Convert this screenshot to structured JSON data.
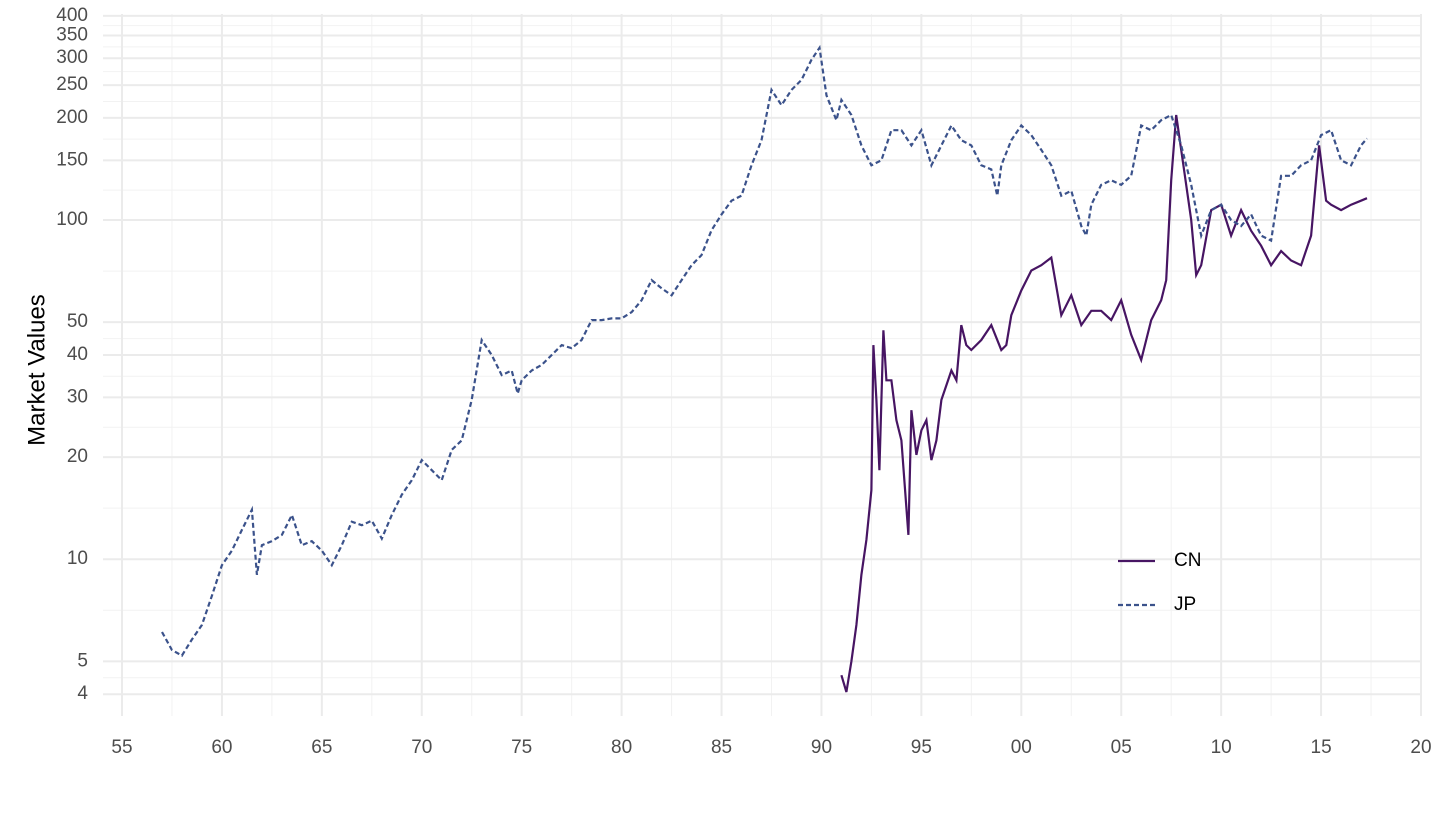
{
  "chart_data": {
    "type": "line",
    "y_label": "Market Values",
    "y_log": true,
    "grid": true,
    "legend_position": "bottom-right",
    "xlim": [
      1954.05,
      2020
    ],
    "ylim": [
      3.45,
      405
    ],
    "xticks": [
      {
        "value": 1955,
        "label": "55"
      },
      {
        "value": 1960,
        "label": "60"
      },
      {
        "value": 1965,
        "label": "65"
      },
      {
        "value": 1970,
        "label": "70"
      },
      {
        "value": 1975,
        "label": "75"
      },
      {
        "value": 1980,
        "label": "80"
      },
      {
        "value": 1985,
        "label": "85"
      },
      {
        "value": 1990,
        "label": "90"
      },
      {
        "value": 1995,
        "label": "95"
      },
      {
        "value": 2000,
        "label": "00"
      },
      {
        "value": 2005,
        "label": "05"
      },
      {
        "value": 2010,
        "label": "10"
      },
      {
        "value": 2015,
        "label": "15"
      },
      {
        "value": 2020,
        "label": "20"
      }
    ],
    "yticks": [
      4,
      5,
      10,
      20,
      30,
      40,
      50,
      100,
      150,
      200,
      250,
      300,
      350,
      400
    ],
    "series": [
      {
        "name": "CN",
        "color": "#471563",
        "linestyle": "solid",
        "x": [
          1991.0,
          1991.25,
          1991.5,
          1991.75,
          1992.0,
          1992.25,
          1992.5,
          1992.6,
          1992.75,
          1992.9,
          1993.1,
          1993.25,
          1993.5,
          1993.75,
          1994.0,
          1994.35,
          1994.5,
          1994.75,
          1995.0,
          1995.25,
          1995.5,
          1995.75,
          1996.0,
          1996.5,
          1996.75,
          1997.0,
          1997.25,
          1997.5,
          1998.0,
          1998.5,
          1999.0,
          1999.25,
          1999.5,
          2000.0,
          2000.5,
          2001.0,
          2001.5,
          2002.0,
          2002.5,
          2003.0,
          2003.5,
          2004.0,
          2004.5,
          2005.0,
          2005.5,
          2006.0,
          2006.5,
          2007.0,
          2007.25,
          2007.5,
          2007.75,
          2008.0,
          2008.5,
          2008.75,
          2009.0,
          2009.5,
          2010.0,
          2010.5,
          2011.0,
          2011.5,
          2012.0,
          2012.5,
          2013.0,
          2013.5,
          2014.0,
          2014.5,
          2014.9,
          2015.25,
          2015.5,
          2016.0,
          2016.5,
          2017.0,
          2017.3
        ],
        "values": [
          4.55,
          4.06,
          5.0,
          6.4,
          9.0,
          11.4,
          16,
          42.8,
          29.5,
          18.3,
          47.3,
          33.7,
          33.7,
          25.7,
          22.4,
          11.8,
          27.5,
          20.3,
          24,
          25.7,
          19.6,
          22.4,
          29.5,
          36,
          33.7,
          49,
          42.8,
          41.4,
          44.3,
          49,
          41.4,
          42.8,
          52.4,
          62,
          71,
          73.6,
          77.5,
          52.4,
          60,
          49,
          54,
          54,
          50.7,
          58,
          45.9,
          38.7,
          50.7,
          58,
          66.5,
          131,
          204,
          161,
          100,
          68.8,
          73.6,
          107,
          111,
          90,
          107,
          93,
          84,
          73.6,
          81,
          76,
          73.6,
          90,
          166,
          114,
          111,
          107,
          111,
          114,
          116
        ]
      },
      {
        "name": "JP",
        "color": "#3b528b",
        "linestyle": "dashed",
        "x": [
          1957.0,
          1957.5,
          1958.0,
          1958.5,
          1959.0,
          1959.5,
          1960.0,
          1960.5,
          1961.0,
          1961.5,
          1961.75,
          1962.0,
          1962.5,
          1963.0,
          1963.5,
          1964.0,
          1964.5,
          1965.0,
          1965.5,
          1966.0,
          1966.5,
          1967.0,
          1967.5,
          1968.0,
          1968.5,
          1969.0,
          1969.5,
          1970.0,
          1970.5,
          1971.0,
          1971.5,
          1972.0,
          1972.5,
          1973.0,
          1973.5,
          1974.0,
          1974.5,
          1974.8,
          1975.0,
          1975.5,
          1976.0,
          1976.5,
          1977.0,
          1977.5,
          1978.0,
          1978.5,
          1979.0,
          1979.5,
          1980.0,
          1980.5,
          1981.0,
          1981.5,
          1982.0,
          1982.5,
          1983.0,
          1983.5,
          1984.0,
          1984.5,
          1985.0,
          1985.5,
          1986.0,
          1986.5,
          1987.0,
          1987.5,
          1988.0,
          1988.5,
          1989.0,
          1989.5,
          1989.9,
          1990.25,
          1990.75,
          1991.0,
          1991.5,
          1992.0,
          1992.5,
          1993.0,
          1993.5,
          1994.0,
          1994.5,
          1995.0,
          1995.5,
          1996.0,
          1996.5,
          1997.0,
          1997.5,
          1998.0,
          1998.5,
          1998.8,
          1999.0,
          1999.5,
          2000.0,
          2000.5,
          2001.0,
          2001.5,
          2002.0,
          2002.5,
          2003.0,
          2003.25,
          2003.5,
          2004.0,
          2004.5,
          2005.0,
          2005.5,
          2006.0,
          2006.5,
          2007.0,
          2007.5,
          2008.0,
          2008.5,
          2009.0,
          2009.5,
          2010.0,
          2010.5,
          2011.0,
          2011.5,
          2012.0,
          2012.5,
          2013.0,
          2013.5,
          2014.0,
          2014.5,
          2015.0,
          2015.5,
          2016.0,
          2016.5,
          2017.0,
          2017.3
        ],
        "values": [
          6.1,
          5.4,
          5.2,
          5.8,
          6.4,
          7.8,
          9.6,
          10.6,
          12.2,
          14,
          9.0,
          11,
          11.3,
          11.8,
          13.5,
          11,
          11.3,
          10.6,
          9.6,
          11,
          12.9,
          12.6,
          13,
          11.5,
          13.5,
          15.5,
          17.1,
          19.6,
          18.3,
          17.1,
          21,
          22.4,
          29.5,
          44.3,
          40,
          34.9,
          36,
          30.8,
          33.7,
          36,
          37.4,
          40,
          42.8,
          41.9,
          44.3,
          50.7,
          50.7,
          51.3,
          51.3,
          53.5,
          58,
          66.5,
          62.9,
          60,
          66.5,
          73.6,
          78.8,
          93.3,
          103.8,
          114,
          118,
          145,
          172,
          242,
          218,
          242,
          259,
          297,
          322,
          233,
          197,
          226,
          204,
          166,
          145,
          150,
          184,
          184,
          166,
          184,
          145,
          166,
          190,
          172,
          166,
          145,
          141,
          118,
          145,
          172,
          190,
          178,
          161,
          145,
          118,
          122,
          96,
          90,
          111,
          127,
          131,
          127,
          135,
          190,
          184,
          197,
          204,
          166,
          127,
          90,
          107,
          111,
          100,
          96,
          104,
          90,
          87,
          135,
          135,
          145,
          150,
          178,
          184,
          150,
          145,
          166,
          174
        ]
      }
    ]
  }
}
